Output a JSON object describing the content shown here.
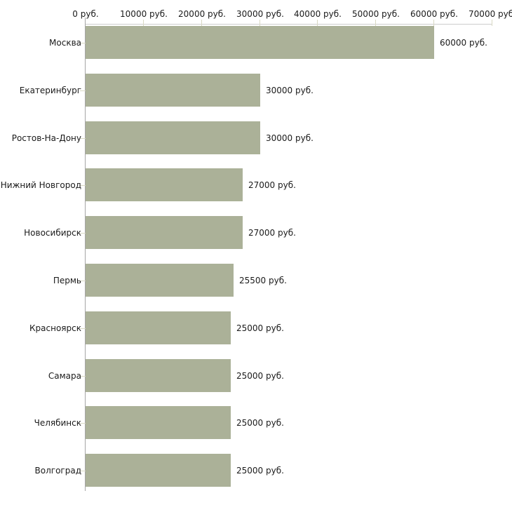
{
  "chart_data": {
    "type": "bar",
    "orientation": "horizontal",
    "title": "",
    "xlabel": "",
    "ylabel": "",
    "categories": [
      "Москва",
      "Екатеринбург",
      "Ростов-На-Дону",
      "Нижний Новгород",
      "Новосибирск",
      "Пермь",
      "Красноярск",
      "Самара",
      "Челябинск",
      "Волгоград"
    ],
    "values": [
      60000,
      30000,
      30000,
      27000,
      27000,
      25500,
      25000,
      25000,
      25000,
      25000
    ],
    "value_labels": [
      "60000 руб.",
      "30000 руб.",
      "30000 руб.",
      "27000 руб.",
      "27000 руб.",
      "25500 руб.",
      "25000 руб.",
      "25000 руб.",
      "25000 руб.",
      "25000 руб."
    ],
    "x_axis": {
      "position": "top",
      "min": 0,
      "max": 70000,
      "tick_values": [
        0,
        10000,
        20000,
        30000,
        40000,
        50000,
        60000,
        70000
      ],
      "tick_labels": [
        "0 руб.",
        "10000 руб.",
        "20000 руб.",
        "30000 руб.",
        "40000 руб.",
        "50000 руб.",
        "60000 руб.",
        "70000 руб."
      ]
    },
    "grid": false,
    "legend": false,
    "colors": {
      "bar_fill": "#abb198",
      "axis_line": "#cccccc",
      "y_axis_line": "#a6a6a6",
      "tick_mark": "#d9d9c4",
      "text": "#1a1a1a",
      "background": "#ffffff"
    }
  }
}
